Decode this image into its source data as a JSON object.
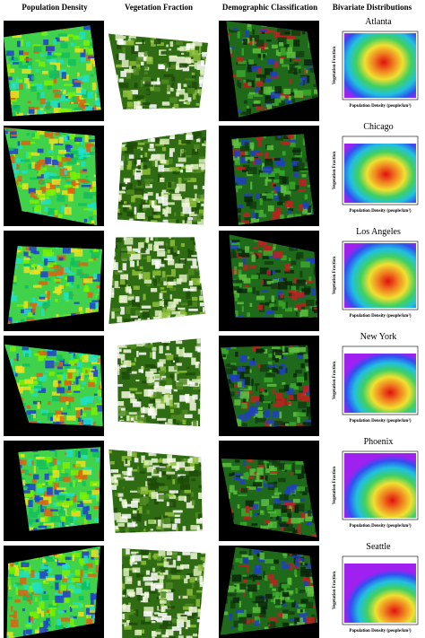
{
  "header": {
    "columns": [
      "Population Density",
      "Vegetation Fraction",
      "Demographic Classification",
      "Bivariate Distributions"
    ]
  },
  "rows": [
    {
      "city": "Atlanta"
    },
    {
      "city": "Chicago"
    },
    {
      "city": "Los Angeles"
    },
    {
      "city": "New York"
    },
    {
      "city": "Phoenix"
    },
    {
      "city": "Seattle"
    }
  ],
  "axes": {
    "y_label": "Vegetation Fraction",
    "x_label": "Population Density (people/km²)"
  }
}
